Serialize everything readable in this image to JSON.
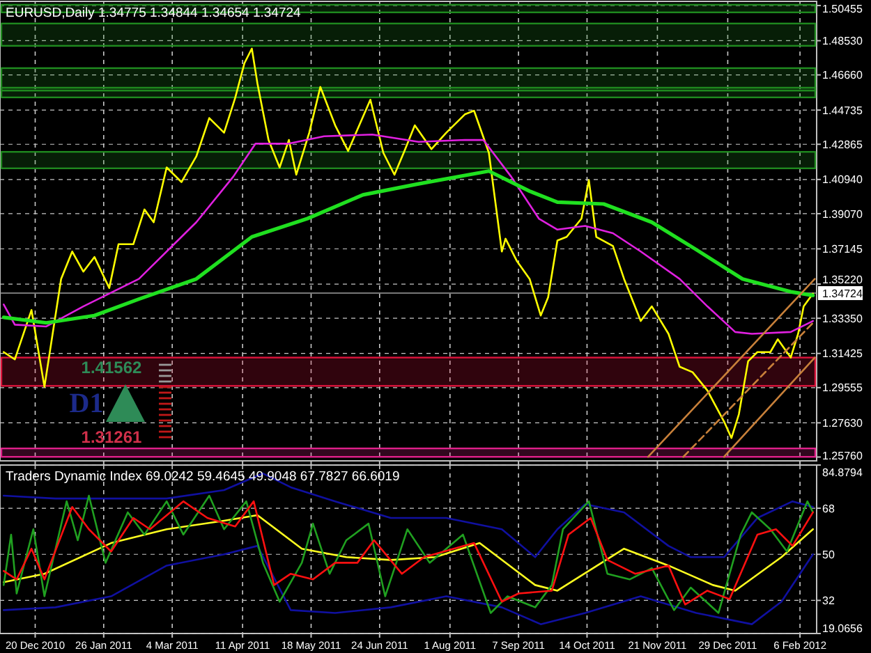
{
  "chart_data": [
    {
      "type": "line",
      "title": "EURUSD,Daily  1.34775 1.34844 1.34654 1.34724",
      "tick_labels": "y",
      "grid": true,
      "xlim": [
        "2010-12-01",
        "2012-02-15"
      ],
      "ylim": [
        1.2555,
        1.5068
      ],
      "xticks": [
        {
          "value": "2010-12-20",
          "label": null
        },
        {
          "value": "2011-01-26",
          "label": null
        },
        {
          "value": "2011-03-04",
          "label": null
        },
        {
          "value": "2011-04-11",
          "label": null
        },
        {
          "value": "2011-05-18",
          "label": null
        },
        {
          "value": "2011-06-24",
          "label": null
        },
        {
          "value": "2011-08-01",
          "label": null
        },
        {
          "value": "2011-09-07",
          "label": null
        },
        {
          "value": "2011-10-14",
          "label": null
        },
        {
          "value": "2011-11-21",
          "label": null
        },
        {
          "value": "2011-12-29",
          "label": null
        },
        {
          "value": "2012-02-06",
          "label": null
        }
      ],
      "yticks": [
        {
          "value": 1.50455,
          "label": "1.50455"
        },
        {
          "value": 1.4853,
          "label": "1.48530"
        },
        {
          "value": 1.4666,
          "label": "1.46660"
        },
        {
          "value": 1.44735,
          "label": "1.44735"
        },
        {
          "value": 1.42865,
          "label": "1.42865"
        },
        {
          "value": 1.4094,
          "label": "1.40940"
        },
        {
          "value": 1.3907,
          "label": "1.39070"
        },
        {
          "value": 1.37145,
          "label": "1.37145"
        },
        {
          "value": 1.3522,
          "label": "1.35220"
        },
        {
          "value": 1.3335,
          "label": "1.33350"
        },
        {
          "value": 1.31425,
          "label": "1.31425"
        },
        {
          "value": 1.29555,
          "label": "1.29555"
        },
        {
          "value": 1.2763,
          "label": "1.27630"
        },
        {
          "value": 1.2576,
          "label": "1.25760"
        }
      ],
      "series": [
        {
          "color": "#ffff00",
          "x": [
            "2010-12-03",
            "2010-12-09",
            "2010-12-18",
            "2010-12-25",
            "2011-01-03",
            "2011-01-09",
            "2011-01-15",
            "2011-01-21",
            "2011-01-29",
            "2011-02-03",
            "2011-02-11",
            "2011-02-17",
            "2011-02-22",
            "2011-03-01",
            "2011-03-09",
            "2011-03-17",
            "2011-03-24",
            "2011-04-01",
            "2011-04-07",
            "2011-04-12",
            "2011-04-16",
            "2011-04-19",
            "2011-04-25",
            "2011-05-01",
            "2011-05-06",
            "2011-05-10",
            "2011-05-17",
            "2011-05-23",
            "2011-05-31",
            "2011-06-07",
            "2011-06-13",
            "2011-06-19",
            "2011-06-26",
            "2011-07-02",
            "2011-07-07",
            "2011-07-13",
            "2011-07-22",
            "2011-07-30",
            "2011-08-09",
            "2011-08-14",
            "2011-08-22",
            "2011-08-29",
            "2011-08-31",
            "2011-09-06",
            "2011-09-13",
            "2011-09-19",
            "2011-09-23",
            "2011-09-28",
            "2011-10-03",
            "2011-10-11",
            "2011-10-15",
            "2011-10-19",
            "2011-10-28",
            "2011-11-03",
            "2011-11-12",
            "2011-11-18",
            "2011-11-27",
            "2011-12-03",
            "2011-12-10",
            "2011-12-18",
            "2011-12-27",
            "2011-12-31",
            "2012-01-04",
            "2012-01-09",
            "2012-01-14",
            "2012-01-21",
            "2012-01-25",
            "2012-02-01",
            "2012-02-05",
            "2012-02-08",
            "2012-02-13"
          ],
          "values": [
            1.315,
            1.311,
            1.338,
            1.296,
            1.355,
            1.37,
            1.359,
            1.367,
            1.35,
            1.374,
            1.374,
            1.393,
            1.386,
            1.416,
            1.408,
            1.422,
            1.443,
            1.435,
            1.454,
            1.473,
            1.481,
            1.462,
            1.431,
            1.416,
            1.431,
            1.412,
            1.435,
            1.46,
            1.439,
            1.425,
            1.439,
            1.453,
            1.424,
            1.412,
            1.424,
            1.439,
            1.426,
            1.435,
            1.445,
            1.447,
            1.424,
            1.37,
            1.377,
            1.365,
            1.355,
            1.335,
            1.345,
            1.376,
            1.378,
            1.388,
            1.409,
            1.378,
            1.373,
            1.355,
            1.332,
            1.34,
            1.325,
            1.307,
            1.304,
            1.294,
            1.277,
            1.268,
            1.281,
            1.31,
            1.315,
            1.315,
            1.322,
            1.312,
            1.325,
            1.34,
            1.347
          ]
        },
        {
          "color": "#e020e0",
          "x": [
            "2010-12-03",
            "2010-12-09",
            "2010-12-26",
            "2011-01-15",
            "2011-02-14",
            "2011-03-17",
            "2011-04-06",
            "2011-04-18",
            "2011-05-06",
            "2011-05-25",
            "2011-06-20",
            "2011-07-15",
            "2011-08-09",
            "2011-08-19",
            "2011-09-03",
            "2011-09-18",
            "2011-09-28",
            "2011-10-13",
            "2011-10-28",
            "2011-11-12",
            "2011-12-03",
            "2011-12-18",
            "2012-01-02",
            "2012-01-11",
            "2012-02-01",
            "2012-02-13"
          ],
          "values": [
            1.341,
            1.33,
            1.329,
            1.34,
            1.355,
            1.386,
            1.411,
            1.429,
            1.429,
            1.433,
            1.434,
            1.43,
            1.431,
            1.431,
            1.411,
            1.388,
            1.382,
            1.384,
            1.38,
            1.37,
            1.355,
            1.34,
            1.326,
            1.325,
            1.326,
            1.332
          ]
        },
        {
          "color": "#20e020",
          "x": [
            "2010-12-03",
            "2010-12-26",
            "2011-01-21",
            "2011-02-14",
            "2011-03-17",
            "2011-04-16",
            "2011-05-16",
            "2011-06-15",
            "2011-07-15",
            "2011-08-22",
            "2011-09-13",
            "2011-09-28",
            "2011-10-23",
            "2011-11-18",
            "2011-12-12",
            "2012-01-06",
            "2012-02-01",
            "2012-02-13"
          ],
          "values": [
            1.334,
            1.331,
            1.335,
            1.344,
            1.355,
            1.378,
            1.388,
            1.401,
            1.407,
            1.414,
            1.403,
            1.397,
            1.396,
            1.386,
            1.371,
            1.355,
            1.348,
            1.346
          ]
        },
        {
          "color": "#c8803a",
          "x": [
            "2011-11-16",
            "2012-02-14"
          ],
          "values": [
            1.2577,
            1.355
          ]
        },
        {
          "color": "#c8803a",
          "line_style": "dashed",
          "x": [
            "2011-12-05",
            "2012-02-14"
          ],
          "values": [
            1.2577,
            1.332
          ]
        },
        {
          "color": "#c8803a",
          "x": [
            "2011-12-27",
            "2012-02-14"
          ],
          "values": [
            1.2577,
            1.312
          ]
        }
      ],
      "bands": [
        {
          "axis": "y",
          "from": 1.5008,
          "to": 1.505,
          "color": "#1f8a1f"
        },
        {
          "axis": "y",
          "from": 1.4825,
          "to": 1.4947,
          "color": "#1f8a1f"
        },
        {
          "axis": "y",
          "from": 1.458,
          "to": 1.4703,
          "color": "#1f8a1f"
        },
        {
          "axis": "y",
          "from": 1.4543,
          "to": 1.4596,
          "color": "#1f8a1f"
        },
        {
          "axis": "y",
          "from": 1.4155,
          "to": 1.4245,
          "color": "#1f8a1f"
        },
        {
          "axis": "y",
          "from": 1.2965,
          "to": 1.312,
          "color": "#dc143c"
        },
        {
          "axis": "y",
          "from": 1.2577,
          "to": 1.2623,
          "color": "#e0208a"
        }
      ],
      "ref_lines": [
        {
          "axis": "y",
          "value": 1.34724,
          "label": "1.34724",
          "color": "#a0a0a0"
        }
      ],
      "annotations": [
        "D1",
        "1.41562",
        "1.31261"
      ]
    },
    {
      "type": "line",
      "title": "Traders Dynamic Index 69.0242 59.4645 49.9048 67.7827 66.6019",
      "grid": true,
      "xlim": [
        "2010-12-01",
        "2012-02-15"
      ],
      "ylim": [
        19.0656,
        84.8794
      ],
      "xticks": [
        {
          "value": "2010-12-20",
          "label": "20 Dec 2010"
        },
        {
          "value": "2011-01-26",
          "label": "26 Jan 2011"
        },
        {
          "value": "2011-03-04",
          "label": "4 Mar 2011"
        },
        {
          "value": "2011-04-11",
          "label": "11 Apr 2011"
        },
        {
          "value": "2011-05-18",
          "label": "18 May 2011"
        },
        {
          "value": "2011-06-24",
          "label": "24 Jun 2011"
        },
        {
          "value": "2011-08-01",
          "label": "1 Aug 2011"
        },
        {
          "value": "2011-09-07",
          "label": "7 Sep 2011"
        },
        {
          "value": "2011-10-14",
          "label": "14 Oct 2011"
        },
        {
          "value": "2011-11-21",
          "label": "21 Nov 2011"
        },
        {
          "value": "2011-12-29",
          "label": "29 Dec 2011"
        },
        {
          "value": "2012-02-06",
          "label": "6 Feb 2012"
        }
      ],
      "yticks": [
        19.0656,
        32,
        50,
        68,
        84.8794
      ],
      "series": [
        {
          "color": "#1010a0",
          "x": [
            "2010-12-03",
            "2010-12-31",
            "2011-01-30",
            "2011-03-01",
            "2011-04-01",
            "2011-04-22",
            "2011-05-07",
            "2011-05-31",
            "2011-06-30",
            "2011-07-30",
            "2011-08-29",
            "2011-09-16",
            "2011-09-28",
            "2011-10-13",
            "2011-11-03",
            "2011-11-27",
            "2011-12-09",
            "2011-12-27",
            "2012-01-14",
            "2012-02-02",
            "2012-02-13"
          ],
          "values": [
            72.9,
            71.8,
            71.8,
            71.8,
            75.1,
            81.6,
            76.2,
            70.7,
            64.2,
            64.2,
            59.8,
            48.9,
            59.8,
            69.6,
            66.4,
            53.3,
            48.9,
            48.9,
            64.2,
            70.7,
            68.5
          ]
        },
        {
          "color": "#1010a0",
          "x": [
            "2010-12-03",
            "2010-12-31",
            "2011-01-30",
            "2011-03-01",
            "2011-04-01",
            "2011-04-19",
            "2011-05-07",
            "2011-05-31",
            "2011-06-30",
            "2011-07-30",
            "2011-08-29",
            "2011-09-19",
            "2011-10-13",
            "2011-11-12",
            "2011-12-12",
            "2012-01-11",
            "2012-01-27",
            "2012-02-13"
          ],
          "values": [
            28.2,
            29.3,
            33.6,
            45.6,
            50,
            53.3,
            28.2,
            27.1,
            29.3,
            33.6,
            29.3,
            22.7,
            27.1,
            33.6,
            27.1,
            22.7,
            31.5,
            50
          ]
        },
        {
          "color": "#ffff20",
          "x": [
            "2010-12-03",
            "2010-12-25",
            "2011-01-30",
            "2011-03-01",
            "2011-04-01",
            "2011-04-19",
            "2011-05-13",
            "2011-06-06",
            "2011-06-30",
            "2011-07-24",
            "2011-08-17",
            "2011-09-16",
            "2011-09-28",
            "2011-11-03",
            "2011-11-27",
            "2011-12-21",
            "2012-01-02",
            "2012-01-27",
            "2012-02-13"
          ],
          "values": [
            39.1,
            42.4,
            54.4,
            59.8,
            63.1,
            65.3,
            52.2,
            48.9,
            47.8,
            48.9,
            54.4,
            38,
            35.8,
            52.2,
            45.6,
            38,
            35.8,
            48.9,
            59.8
          ]
        },
        {
          "color": "#20a020",
          "x": [
            "2010-12-03",
            "2010-12-07",
            "2010-12-10",
            "2010-12-19",
            "2010-12-25",
            "2011-01-06",
            "2011-01-12",
            "2011-01-18",
            "2011-01-27",
            "2011-02-08",
            "2011-02-17",
            "2011-03-01",
            "2011-03-10",
            "2011-03-24",
            "2011-04-01",
            "2011-04-13",
            "2011-04-22",
            "2011-05-01",
            "2011-05-13",
            "2011-05-19",
            "2011-05-28",
            "2011-06-06",
            "2011-06-18",
            "2011-06-27",
            "2011-07-09",
            "2011-07-21",
            "2011-08-08",
            "2011-08-23",
            "2011-09-01",
            "2011-09-16",
            "2011-09-25",
            "2011-10-01",
            "2011-10-15",
            "2011-10-25",
            "2011-11-06",
            "2011-11-18",
            "2011-11-30",
            "2011-12-09",
            "2011-12-24",
            "2012-01-05",
            "2012-01-11",
            "2012-01-21",
            "2012-01-30",
            "2012-02-10",
            "2012-02-13"
          ],
          "values": [
            38,
            57.7,
            34.7,
            59.8,
            33.6,
            70.7,
            55.5,
            72.9,
            46.7,
            66.4,
            57.7,
            70.7,
            57.7,
            72.9,
            59.8,
            70.7,
            46.7,
            31.5,
            46.7,
            62,
            42.4,
            55.5,
            62,
            33.6,
            59.8,
            46.7,
            57.7,
            27.1,
            33.6,
            29.3,
            38,
            59.8,
            70.7,
            42.4,
            40.2,
            44.6,
            28.2,
            37,
            27.1,
            57.7,
            66.4,
            59.8,
            51.1,
            70.7,
            66.4
          ]
        },
        {
          "color": "#ff1010",
          "x": [
            "2010-12-03",
            "2010-12-10",
            "2010-12-18",
            "2010-12-25",
            "2011-01-09",
            "2011-01-18",
            "2011-01-30",
            "2011-02-11",
            "2011-02-20",
            "2011-03-10",
            "2011-03-23",
            "2011-04-07",
            "2011-04-17",
            "2011-04-28",
            "2011-05-07",
            "2011-05-19",
            "2011-05-31",
            "2011-06-12",
            "2011-06-21",
            "2011-07-06",
            "2011-07-18",
            "2011-08-14",
            "2011-08-29",
            "2011-09-07",
            "2011-09-25",
            "2011-10-04",
            "2011-10-16",
            "2011-10-25",
            "2011-11-09",
            "2011-11-27",
            "2011-12-06",
            "2011-12-18",
            "2011-12-30",
            "2012-01-14",
            "2012-01-24",
            "2012-02-02",
            "2012-02-13"
          ],
          "values": [
            43.5,
            40.2,
            52.2,
            40.2,
            68.5,
            59.8,
            51.1,
            64.2,
            59.8,
            70.7,
            64.2,
            60.9,
            70.7,
            38,
            42.4,
            40.2,
            46.7,
            46.7,
            55.5,
            42.4,
            48.9,
            54.4,
            31.5,
            34.7,
            35.8,
            57.7,
            64.2,
            47.8,
            42.4,
            45.6,
            30.4,
            35.8,
            32.5,
            57.7,
            59.8,
            53.3,
            66.4
          ]
        }
      ]
    }
  ]
}
